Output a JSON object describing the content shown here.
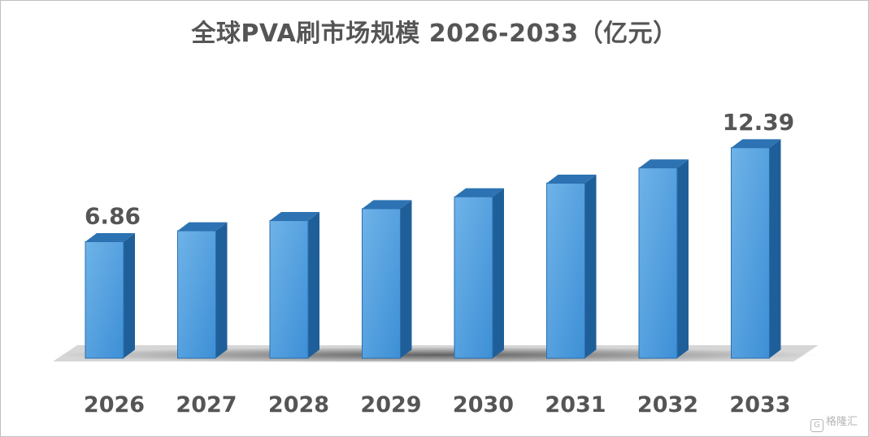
{
  "chart_data": {
    "type": "bar",
    "title": "全球PVA刷市场规模 2026-2033（亿元）",
    "categories": [
      "2026",
      "2027",
      "2028",
      "2029",
      "2030",
      "2031",
      "2032",
      "2033"
    ],
    "values": [
      6.86,
      7.5,
      8.1,
      8.8,
      9.5,
      10.3,
      11.2,
      12.39
    ],
    "data_labels": [
      {
        "index": 0,
        "text": "6.86"
      },
      {
        "index": 7,
        "text": "12.39"
      }
    ],
    "colors": {
      "bar_front_top": "#6fb3e8",
      "bar_front_bottom": "#3d8fd6",
      "bar_side": "#1f5f99",
      "bar_top": "#2d73b3",
      "label_text": "#555555"
    },
    "grid": false,
    "legend": false
  },
  "watermark": {
    "icon": "gelonghui-logo-icon",
    "text": "格隆汇"
  }
}
